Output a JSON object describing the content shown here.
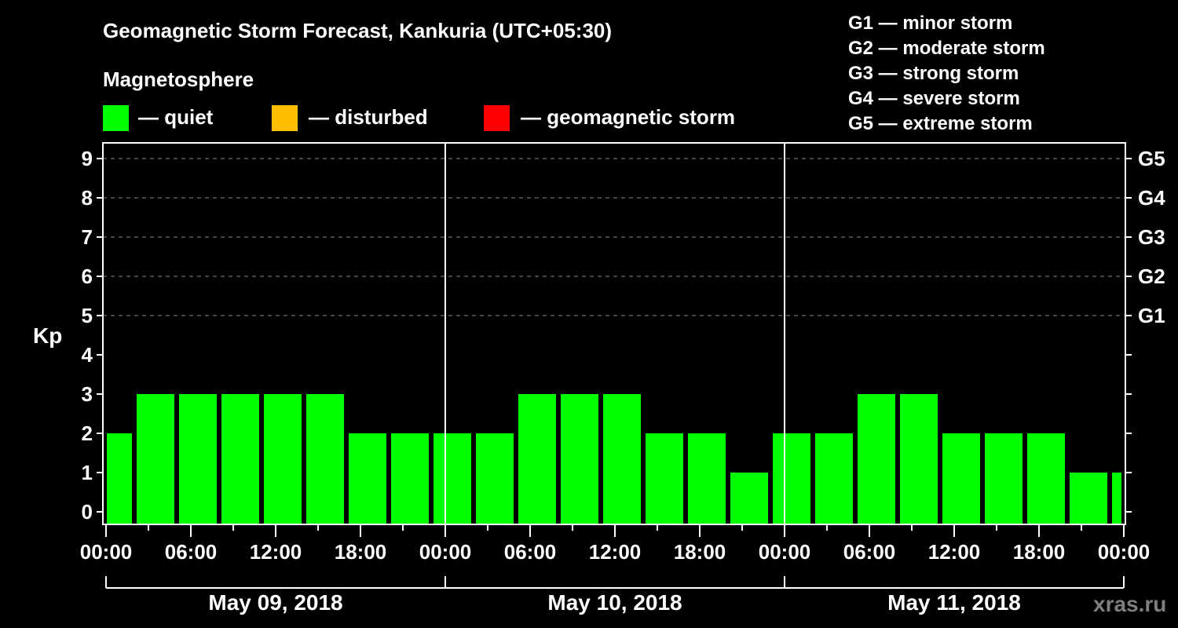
{
  "header": {
    "title": "Geomagnetic Storm Forecast, Kankuria (UTC+05:30)",
    "subtitle": "Magnetosphere"
  },
  "legend": [
    {
      "label": "— quiet",
      "color": "#00ff00"
    },
    {
      "label": "— disturbed",
      "color": "#ffbf00"
    },
    {
      "label": "— geomagnetic storm",
      "color": "#ff0000"
    }
  ],
  "storm_scale": [
    "G1 — minor storm",
    "G2 — moderate storm",
    "G3 — strong storm",
    "G4 — severe storm",
    "G5 — extreme storm"
  ],
  "axes": {
    "ylabel": "Kp",
    "yticks": [
      "0",
      "1",
      "2",
      "3",
      "4",
      "5",
      "6",
      "7",
      "8",
      "9"
    ],
    "gticks": [
      "G1",
      "G2",
      "G3",
      "G4",
      "G5"
    ],
    "xticks": [
      "00:00",
      "06:00",
      "12:00",
      "18:00",
      "00:00",
      "06:00",
      "12:00",
      "18:00",
      "00:00",
      "06:00",
      "12:00",
      "18:00",
      "00:00"
    ],
    "days": [
      "May 09, 2018",
      "May 10, 2018",
      "May 11, 2018"
    ]
  },
  "watermark": "xras.ru",
  "chart_data": {
    "type": "bar",
    "title": "Geomagnetic Storm Forecast, Kankuria (UTC+05:30)",
    "xlabel": "",
    "ylabel": "Kp",
    "ylim": [
      0,
      9
    ],
    "grid": "dashed horizontal at Kp 5-9",
    "legend_position": "top",
    "categories": [
      "May 09 00:00",
      "May 09 02:30",
      "May 09 05:30",
      "May 09 08:30",
      "May 09 11:30",
      "May 09 14:30",
      "May 09 17:30",
      "May 09 20:30",
      "May 09 23:30",
      "May 10 02:30",
      "May 10 05:30",
      "May 10 08:30",
      "May 10 11:30",
      "May 10 14:30",
      "May 10 17:30",
      "May 10 20:30",
      "May 10 23:30",
      "May 11 02:30",
      "May 11 05:30",
      "May 11 08:30",
      "May 11 11:30",
      "May 11 14:30",
      "May 11 17:30",
      "May 11 20:30",
      "May 11 23:30"
    ],
    "values": [
      2,
      3,
      3,
      3,
      3,
      3,
      2,
      2,
      2,
      2,
      3,
      3,
      3,
      2,
      2,
      1,
      2,
      2,
      3,
      3,
      2,
      2,
      2,
      1,
      1
    ],
    "status": "quiet",
    "days": [
      "May 09, 2018",
      "May 10, 2018",
      "May 11, 2018"
    ]
  }
}
